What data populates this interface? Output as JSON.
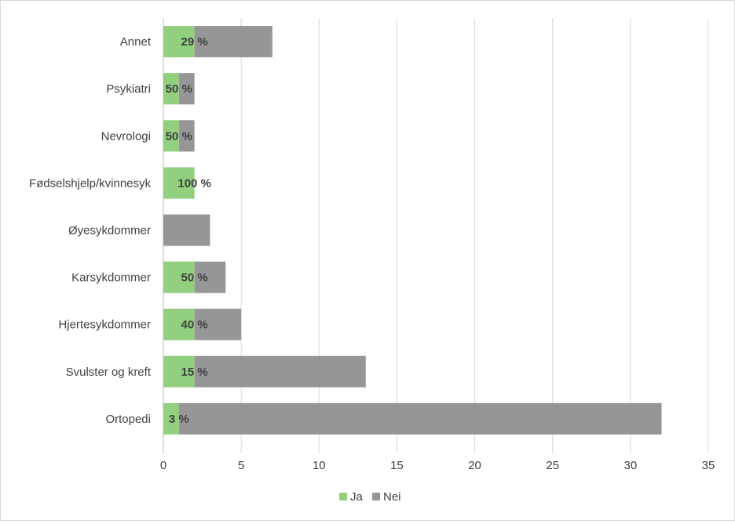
{
  "chart_data": {
    "type": "bar",
    "orientation": "horizontal",
    "stacked": true,
    "categories": [
      "Annet",
      "Psykiatri",
      "Nevrologi",
      "Fødselshjelp/kvinnesyk",
      "Øyesykdommer",
      "Karsykdommer",
      "Hjertesykdommer",
      "Svulster og kreft",
      "Ortopedi"
    ],
    "series": [
      {
        "name": "Ja",
        "color": "#92d07f",
        "values": [
          2,
          1,
          1,
          2,
          0,
          2,
          2,
          2,
          1
        ]
      },
      {
        "name": "Nei",
        "color": "#969696",
        "values": [
          5,
          1,
          1,
          0,
          3,
          2,
          3,
          11,
          31
        ]
      }
    ],
    "data_labels": [
      "29 %",
      "50 %",
      "50 %",
      "100 %",
      "",
      "50 %",
      "40 %",
      "15 %",
      "3 %"
    ],
    "xlim": [
      0,
      35
    ],
    "xticks": [
      "0",
      "5",
      "10",
      "15",
      "20",
      "25",
      "30",
      "35"
    ],
    "grid": "vertical",
    "legend_position": "bottom"
  }
}
